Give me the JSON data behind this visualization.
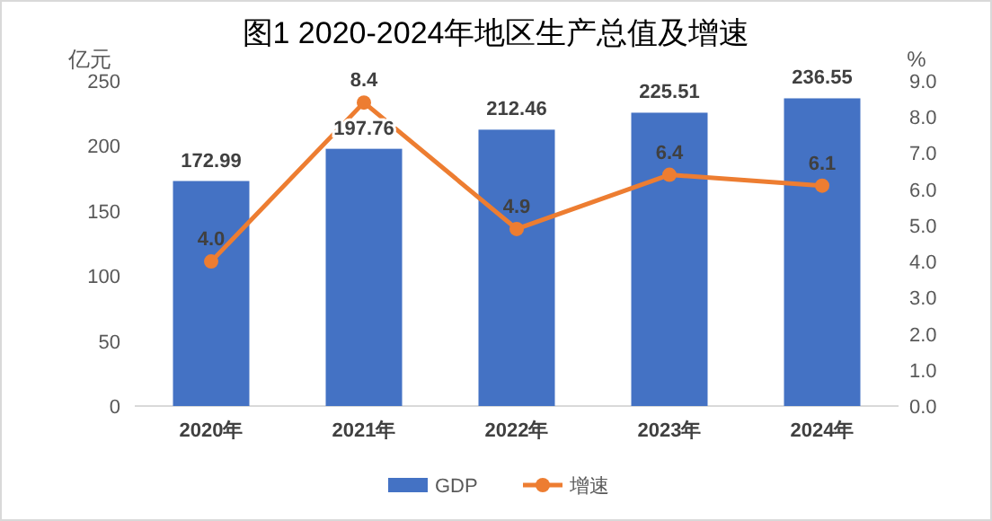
{
  "chart_data": {
    "type": "bar",
    "title": "图1 2020-2024年地区生产总值及增速",
    "ylabel": "亿元",
    "y2label": "%",
    "categories": [
      "2020年",
      "2021年",
      "2022年",
      "2023年",
      "2024年"
    ],
    "series": [
      {
        "name": "GDP",
        "color": "#4472c4",
        "values": [
          172.99,
          197.76,
          212.46,
          225.51,
          236.55
        ]
      },
      {
        "name": "增速",
        "type": "line",
        "axis": "y2",
        "color": "#ed7d31",
        "values": [
          4.0,
          8.4,
          4.9,
          6.4,
          6.1
        ],
        "value_labels": [
          "4.0",
          "8.4",
          "4.9",
          "6.4",
          "6.1"
        ]
      }
    ],
    "ylim": [
      0,
      250
    ],
    "yticks": [
      0,
      50,
      100,
      150,
      200,
      250
    ],
    "y2lim": [
      0,
      9
    ],
    "y2ticks": [
      {
        "value": 0,
        "label": "0.0"
      },
      {
        "value": 1,
        "label": "1.0"
      },
      {
        "value": 2,
        "label": "2.0"
      },
      {
        "value": 3,
        "label": "3.0"
      },
      {
        "value": 4,
        "label": "4.0"
      },
      {
        "value": 5,
        "label": "5.0"
      },
      {
        "value": 6,
        "label": "6.0"
      },
      {
        "value": 7,
        "label": "7.0"
      },
      {
        "value": 8,
        "label": "8.0"
      },
      {
        "value": 9,
        "label": "9.0"
      }
    ],
    "data_labels": true,
    "legend": "bottom",
    "marker": "circle",
    "line_style": "solid",
    "grid": false
  }
}
